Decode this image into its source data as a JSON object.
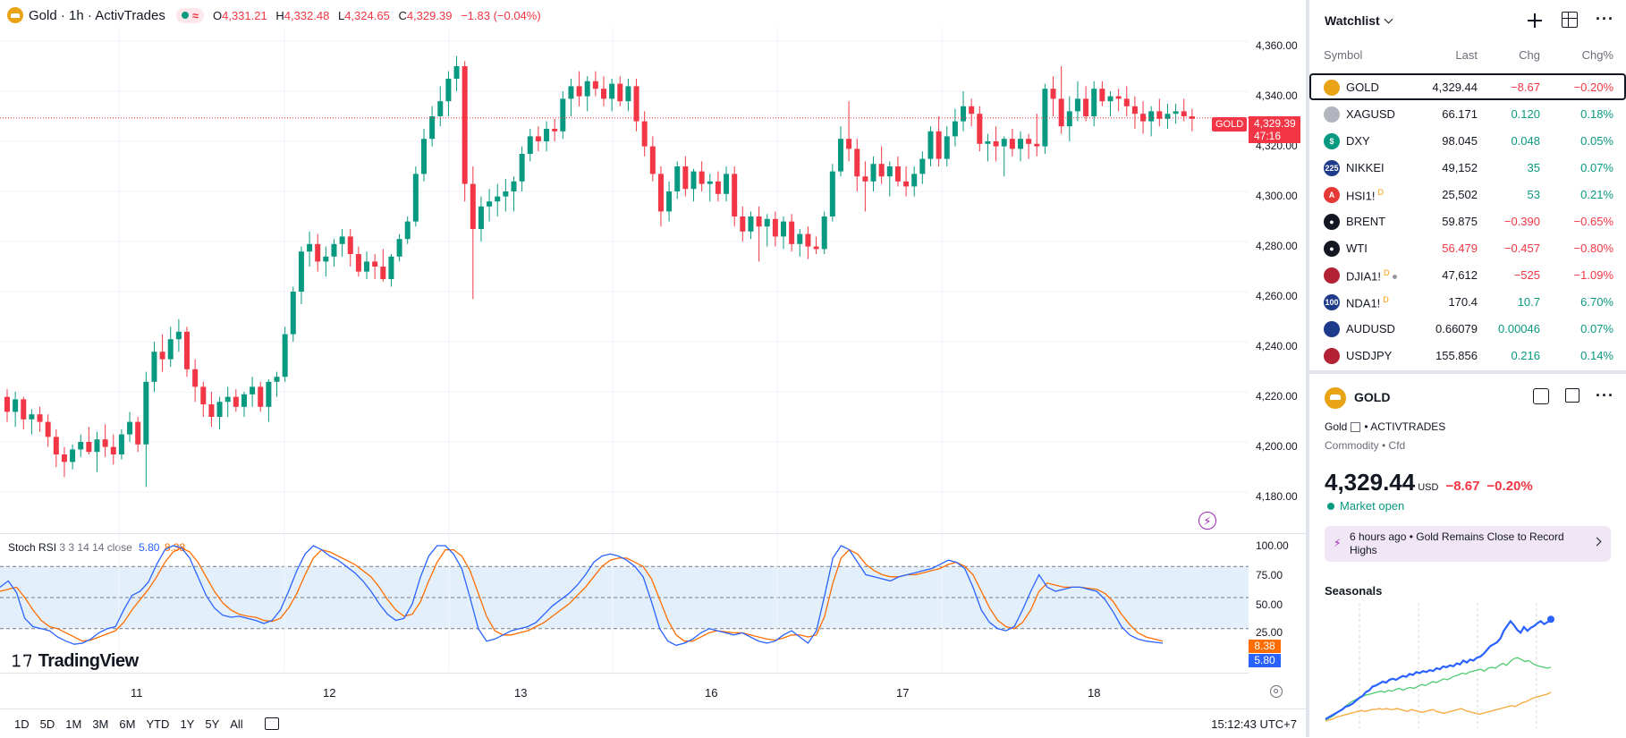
{
  "legend": {
    "title": "Gold · 1h · ActivTrades",
    "open_label": "O",
    "open": "4,331.21",
    "high_label": "H",
    "high": "4,332.48",
    "low_label": "L",
    "low": "4,324.65",
    "close_label": "C",
    "close": "4,329.39",
    "change": "−1.83 (−0.04%)"
  },
  "price_scale": {
    "ticks": [
      "4,360.00",
      "4,340.00",
      "4,320.00",
      "4,300.00",
      "4,280.00",
      "4,260.00",
      "4,240.00",
      "4,220.00",
      "4,200.00",
      "4,180.00"
    ],
    "current_price": "4,329.39",
    "countdown": "47:16",
    "symbol_tag": "GOLD"
  },
  "candles": [
    [
      4218,
      4221,
      4208,
      4212
    ],
    [
      4212,
      4220,
      4206,
      4217
    ],
    [
      4217,
      4218,
      4205,
      4209
    ],
    [
      4209,
      4213,
      4203,
      4211
    ],
    [
      4211,
      4214,
      4204,
      4208
    ],
    [
      4208,
      4211,
      4198,
      4202
    ],
    [
      4202,
      4205,
      4190,
      4195
    ],
    [
      4195,
      4198,
      4186,
      4192
    ],
    [
      4192,
      4199,
      4189,
      4197
    ],
    [
      4197,
      4203,
      4194,
      4200
    ],
    [
      4200,
      4206,
      4195,
      4196
    ],
    [
      4196,
      4204,
      4188,
      4201
    ],
    [
      4201,
      4207,
      4194,
      4198
    ],
    [
      4198,
      4203,
      4191,
      4195
    ],
    [
      4195,
      4205,
      4193,
      4203
    ],
    [
      4203,
      4212,
      4200,
      4208
    ],
    [
      4208,
      4210,
      4196,
      4199
    ],
    [
      4199,
      4228,
      4182,
      4224
    ],
    [
      4224,
      4240,
      4220,
      4236
    ],
    [
      4236,
      4243,
      4228,
      4233
    ],
    [
      4233,
      4246,
      4230,
      4241
    ],
    [
      4241,
      4249,
      4236,
      4244
    ],
    [
      4244,
      4246,
      4226,
      4229
    ],
    [
      4229,
      4233,
      4216,
      4222
    ],
    [
      4222,
      4224,
      4210,
      4215
    ],
    [
      4215,
      4220,
      4206,
      4210
    ],
    [
      4210,
      4218,
      4205,
      4216
    ],
    [
      4216,
      4222,
      4210,
      4218
    ],
    [
      4218,
      4221,
      4212,
      4214
    ],
    [
      4214,
      4220,
      4210,
      4219
    ],
    [
      4219,
      4226,
      4214,
      4222
    ],
    [
      4222,
      4224,
      4212,
      4214
    ],
    [
      4214,
      4225,
      4208,
      4224
    ],
    [
      4224,
      4228,
      4218,
      4226
    ],
    [
      4226,
      4246,
      4224,
      4243
    ],
    [
      4243,
      4262,
      4240,
      4260
    ],
    [
      4260,
      4278,
      4255,
      4276
    ],
    [
      4276,
      4284,
      4270,
      4279
    ],
    [
      4279,
      4283,
      4268,
      4272
    ],
    [
      4272,
      4278,
      4266,
      4274
    ],
    [
      4274,
      4281,
      4270,
      4279
    ],
    [
      4279,
      4285,
      4274,
      4282
    ],
    [
      4282,
      4285,
      4270,
      4275
    ],
    [
      4275,
      4278,
      4266,
      4268
    ],
    [
      4268,
      4276,
      4265,
      4272
    ],
    [
      4272,
      4275,
      4265,
      4270
    ],
    [
      4270,
      4277,
      4264,
      4265
    ],
    [
      4265,
      4275,
      4262,
      4274
    ],
    [
      4274,
      4283,
      4272,
      4281
    ],
    [
      4281,
      4290,
      4279,
      4288
    ],
    [
      4288,
      4310,
      4286,
      4307
    ],
    [
      4307,
      4325,
      4304,
      4321
    ],
    [
      4321,
      4334,
      4318,
      4330
    ],
    [
      4330,
      4342,
      4326,
      4336
    ],
    [
      4336,
      4348,
      4330,
      4345
    ],
    [
      4345,
      4354,
      4340,
      4350
    ],
    [
      4350,
      4352,
      4296,
      4303
    ],
    [
      4303,
      4310,
      4257,
      4285
    ],
    [
      4285,
      4298,
      4280,
      4294
    ],
    [
      4294,
      4301,
      4288,
      4296
    ],
    [
      4296,
      4303,
      4290,
      4298
    ],
    [
      4298,
      4305,
      4292,
      4300
    ],
    [
      4300,
      4306,
      4292,
      4304
    ],
    [
      4304,
      4318,
      4300,
      4315
    ],
    [
      4315,
      4325,
      4312,
      4322
    ],
    [
      4322,
      4326,
      4316,
      4320
    ],
    [
      4320,
      4328,
      4316,
      4325
    ],
    [
      4325,
      4329,
      4320,
      4324
    ],
    [
      4324,
      4340,
      4321,
      4337
    ],
    [
      4337,
      4345,
      4330,
      4342
    ],
    [
      4342,
      4348,
      4334,
      4338
    ],
    [
      4338,
      4346,
      4332,
      4344
    ],
    [
      4344,
      4348,
      4338,
      4341
    ],
    [
      4341,
      4346,
      4334,
      4337
    ],
    [
      4337,
      4345,
      4332,
      4343
    ],
    [
      4343,
      4346,
      4334,
      4336
    ],
    [
      4336,
      4345,
      4332,
      4342
    ],
    [
      4342,
      4345,
      4324,
      4328
    ],
    [
      4328,
      4332,
      4314,
      4318
    ],
    [
      4318,
      4322,
      4304,
      4307
    ],
    [
      4307,
      4310,
      4286,
      4292
    ],
    [
      4292,
      4304,
      4288,
      4300
    ],
    [
      4300,
      4312,
      4297,
      4310
    ],
    [
      4310,
      4314,
      4298,
      4301
    ],
    [
      4301,
      4309,
      4296,
      4308
    ],
    [
      4308,
      4312,
      4300,
      4303
    ],
    [
      4303,
      4307,
      4296,
      4304
    ],
    [
      4304,
      4308,
      4296,
      4299
    ],
    [
      4299,
      4310,
      4296,
      4307
    ],
    [
      4307,
      4310,
      4286,
      4290
    ],
    [
      4290,
      4294,
      4280,
      4284
    ],
    [
      4284,
      4292,
      4281,
      4290
    ],
    [
      4290,
      4294,
      4272,
      4286
    ],
    [
      4286,
      4291,
      4278,
      4289
    ],
    [
      4289,
      4292,
      4278,
      4282
    ],
    [
      4282,
      4290,
      4277,
      4288
    ],
    [
      4288,
      4291,
      4276,
      4279
    ],
    [
      4279,
      4285,
      4274,
      4283
    ],
    [
      4283,
      4286,
      4273,
      4278
    ],
    [
      4278,
      4282,
      4275,
      4277
    ],
    [
      4277,
      4292,
      4275,
      4290
    ],
    [
      4290,
      4311,
      4288,
      4308
    ],
    [
      4308,
      4326,
      4306,
      4321
    ],
    [
      4321,
      4336,
      4312,
      4317
    ],
    [
      4317,
      4321,
      4300,
      4306
    ],
    [
      4306,
      4312,
      4292,
      4304
    ],
    [
      4304,
      4314,
      4300,
      4311
    ],
    [
      4311,
      4318,
      4303,
      4306
    ],
    [
      4306,
      4312,
      4298,
      4310
    ],
    [
      4310,
      4314,
      4302,
      4304
    ],
    [
      4304,
      4310,
      4298,
      4302
    ],
    [
      4302,
      4310,
      4298,
      4307
    ],
    [
      4307,
      4316,
      4303,
      4313
    ],
    [
      4313,
      4326,
      4310,
      4324
    ],
    [
      4324,
      4330,
      4310,
      4313
    ],
    [
      4313,
      4326,
      4310,
      4322
    ],
    [
      4322,
      4333,
      4318,
      4328
    ],
    [
      4328,
      4340,
      4324,
      4334
    ],
    [
      4334,
      4337,
      4326,
      4331
    ],
    [
      4331,
      4334,
      4316,
      4319
    ],
    [
      4319,
      4323,
      4312,
      4320
    ],
    [
      4320,
      4326,
      4312,
      4318
    ],
    [
      4318,
      4322,
      4306,
      4321
    ],
    [
      4321,
      4325,
      4314,
      4317
    ],
    [
      4317,
      4324,
      4312,
      4321
    ],
    [
      4321,
      4323,
      4313,
      4319
    ],
    [
      4319,
      4331,
      4314,
      4318
    ],
    [
      4318,
      4343,
      4315,
      4341
    ],
    [
      4341,
      4346,
      4330,
      4337
    ],
    [
      4337,
      4350,
      4323,
      4326
    ],
    [
      4326,
      4338,
      4320,
      4332
    ],
    [
      4332,
      4344,
      4328,
      4337
    ],
    [
      4337,
      4342,
      4328,
      4330
    ],
    [
      4330,
      4344,
      4326,
      4341
    ],
    [
      4341,
      4344,
      4334,
      4336
    ],
    [
      4336,
      4340,
      4330,
      4338
    ],
    [
      4338,
      4341,
      4332,
      4337
    ],
    [
      4337,
      4342,
      4330,
      4334
    ],
    [
      4334,
      4338,
      4325,
      4331
    ],
    [
      4331,
      4336,
      4323,
      4328
    ],
    [
      4328,
      4334,
      4322,
      4332
    ],
    [
      4332,
      4337,
      4326,
      4329
    ],
    [
      4329,
      4335,
      4325,
      4331
    ],
    [
      4331,
      4335,
      4327,
      4332
    ],
    [
      4332,
      4337,
      4328,
      4330
    ],
    [
      4330,
      4333,
      4324,
      4329
    ]
  ],
  "stoch": {
    "title": "Stoch RSI",
    "params": "3 3 14 14 close",
    "k_value": "5.80",
    "d_value": "8.38",
    "ticks": [
      "100.00",
      "75.00",
      "50.00",
      "25.00"
    ],
    "k": [
      60,
      66,
      55,
      30,
      22,
      20,
      18,
      12,
      8,
      5,
      6,
      10,
      16,
      20,
      22,
      38,
      52,
      56,
      65,
      82,
      96,
      100,
      98,
      88,
      70,
      52,
      40,
      33,
      31,
      32,
      30,
      28,
      25,
      28,
      38,
      56,
      76,
      92,
      100,
      96,
      90,
      86,
      80,
      74,
      66,
      56,
      44,
      34,
      28,
      30,
      44,
      70,
      90,
      100,
      100,
      92,
      78,
      50,
      20,
      8,
      10,
      14,
      18,
      20,
      22,
      26,
      34,
      42,
      48,
      54,
      62,
      72,
      84,
      90,
      92,
      90,
      86,
      80,
      70,
      46,
      20,
      8,
      4,
      6,
      10,
      16,
      20,
      18,
      16,
      14,
      16,
      12,
      8,
      6,
      8,
      14,
      18,
      12,
      6,
      18,
      52,
      88,
      100,
      96,
      84,
      72,
      70,
      68,
      66,
      70,
      72,
      74,
      76,
      78,
      82,
      86,
      84,
      78,
      60,
      38,
      26,
      20,
      18,
      22,
      38,
      56,
      72,
      60,
      56,
      58,
      60,
      60,
      58,
      56,
      48,
      36,
      22,
      14,
      10,
      8,
      7,
      6
    ],
    "d": [
      56,
      58,
      60,
      50,
      38,
      28,
      22,
      20,
      16,
      12,
      8,
      9,
      12,
      15,
      18,
      26,
      38,
      48,
      58,
      70,
      84,
      94,
      98,
      94,
      84,
      70,
      56,
      45,
      38,
      34,
      32,
      31,
      28,
      27,
      30,
      40,
      54,
      72,
      88,
      96,
      94,
      90,
      86,
      82,
      76,
      70,
      60,
      48,
      38,
      32,
      34,
      46,
      66,
      84,
      96,
      96,
      90,
      76,
      54,
      32,
      18,
      14,
      14,
      16,
      18,
      22,
      26,
      32,
      38,
      44,
      52,
      60,
      70,
      80,
      86,
      88,
      88,
      84,
      80,
      68,
      48,
      28,
      14,
      8,
      8,
      12,
      16,
      18,
      17,
      16,
      16,
      14,
      12,
      10,
      9,
      11,
      14,
      14,
      12,
      14,
      32,
      64,
      88,
      96,
      92,
      82,
      76,
      72,
      70,
      70,
      72,
      72,
      74,
      76,
      78,
      82,
      84,
      80,
      72,
      56,
      40,
      28,
      22,
      20,
      26,
      38,
      56,
      64,
      62,
      60,
      60,
      60,
      59,
      58,
      54,
      46,
      34,
      24,
      16,
      12,
      10,
      8
    ]
  },
  "time_axis": {
    "labels": [
      "11",
      "12",
      "13",
      "16",
      "17",
      "18"
    ]
  },
  "ranges": [
    "1D",
    "5D",
    "1M",
    "3M",
    "6M",
    "YTD",
    "1Y",
    "5Y",
    "All"
  ],
  "clock": "15:12:43 UTC+7",
  "brand": "TradingView",
  "watchlist": {
    "title": "Watchlist",
    "cols": {
      "symbol": "Symbol",
      "last": "Last",
      "chg": "Chg",
      "pct": "Chg%"
    },
    "rows": [
      {
        "symbol": "GOLD",
        "last": "4,329.44",
        "chg": "−8.67",
        "pct": "−0.20%",
        "icon": "gold-icon",
        "color": "#e8a317",
        "glyph": "",
        "sup": "",
        "dir": "neg",
        "last_color": "",
        "selected": true
      },
      {
        "symbol": "XAGUSD",
        "last": "66.171",
        "chg": "0.120",
        "pct": "0.18%",
        "icon": "silver-icon",
        "color": "#b2b5be",
        "glyph": "",
        "sup": "",
        "dir": "pos",
        "last_color": ""
      },
      {
        "symbol": "DXY",
        "last": "98.045",
        "chg": "0.048",
        "pct": "0.05%",
        "icon": "dollar-icon",
        "color": "#089981",
        "glyph": "$",
        "sup": "",
        "dir": "pos",
        "last_color": ""
      },
      {
        "symbol": "NIKKEI",
        "last": "49,152",
        "chg": "35",
        "pct": "0.07%",
        "icon": "nikkei-icon",
        "color": "#1e3a8a",
        "glyph": "225",
        "sup": "",
        "dir": "pos",
        "last_color": ""
      },
      {
        "symbol": "HSI1!",
        "last": "25,502",
        "chg": "53",
        "pct": "0.21%",
        "icon": "hsi-icon",
        "color": "#e53935",
        "glyph": "A",
        "sup": "D",
        "dir": "pos",
        "last_color": ""
      },
      {
        "symbol": "BRENT",
        "last": "59.875",
        "chg": "−0.390",
        "pct": "−0.65%",
        "icon": "oil-drop-icon",
        "color": "#131722",
        "glyph": "●",
        "sup": "",
        "dir": "neg",
        "last_color": ""
      },
      {
        "symbol": "WTI",
        "last": "56.479",
        "chg": "−0.457",
        "pct": "−0.80%",
        "icon": "oil-drop-icon",
        "color": "#131722",
        "glyph": "●",
        "sup": "",
        "dir": "neg",
        "last_color": "#f23645"
      },
      {
        "symbol": "DJIA1!",
        "last": "47,612",
        "chg": "−525",
        "pct": "−1.09%",
        "icon": "us-flag-icon",
        "color": "#b22234",
        "glyph": "",
        "sup": "D",
        "dir": "neg",
        "last_color": "",
        "dot": true
      },
      {
        "symbol": "NDA1!",
        "last": "170.4",
        "chg": "10.7",
        "pct": "6.70%",
        "icon": "nasdaq-100-icon",
        "color": "#1e3a8a",
        "glyph": "100",
        "sup": "D",
        "dir": "pos",
        "last_color": ""
      },
      {
        "symbol": "AUDUSD",
        "last": "0.66079",
        "chg": "0.00046",
        "pct": "0.07%",
        "icon": "aud-flag-icon",
        "color": "#1e3a8a",
        "glyph": "",
        "sup": "",
        "dir": "pos",
        "last_color": ""
      },
      {
        "symbol": "USDJPY",
        "last": "155.856",
        "chg": "0.216",
        "pct": "0.14%",
        "icon": "us-flag-icon",
        "color": "#b22234",
        "glyph": "",
        "sup": "",
        "dir": "pos",
        "last_color": ""
      }
    ]
  },
  "details": {
    "symbol": "GOLD",
    "name": "Gold",
    "exchange": "• ACTIVTRADES",
    "category": "Commodity • Cfd",
    "price": "4,329.44",
    "currency": "USD",
    "change": "−8.67",
    "change_pct": "−0.20%",
    "market_status": "Market open",
    "news": "6 hours ago • Gold Remains Close to Record Highs",
    "seasonals_title": "Seasonals"
  },
  "colors": {
    "up": "#089981",
    "down": "#f23645",
    "k_line": "#2962ff",
    "d_line": "#ff6d00"
  },
  "seasonals": {
    "blue": [
      2,
      4,
      6,
      8,
      10,
      12,
      15,
      16,
      18,
      21,
      24,
      26,
      30,
      32,
      36,
      37,
      39,
      41,
      40,
      43,
      44,
      43,
      45,
      47,
      46,
      49,
      48,
      51,
      50,
      52,
      51,
      53,
      52,
      55,
      54,
      57,
      56,
      58,
      57,
      60,
      59,
      63,
      61,
      64,
      63,
      66,
      67,
      70,
      74,
      78,
      80,
      82,
      86,
      94,
      99,
      104,
      100,
      95,
      92,
      98,
      94,
      97,
      99,
      102,
      104,
      101,
      103,
      106
    ],
    "green": [
      1,
      3,
      5,
      8,
      11,
      14,
      17,
      20,
      22,
      24,
      26,
      27,
      28,
      29,
      30,
      31,
      30,
      32,
      31,
      33,
      34,
      32,
      34,
      35,
      34,
      36,
      38,
      37,
      39,
      41,
      40,
      42,
      44,
      43,
      45,
      47,
      48,
      50,
      49,
      51,
      52,
      53,
      54,
      52,
      55,
      56,
      55,
      58,
      60,
      58,
      62,
      65,
      66,
      64,
      62,
      63,
      60,
      58,
      57,
      56,
      55,
      56
    ],
    "orange": [
      0,
      1,
      2,
      4,
      5,
      6,
      7,
      8,
      9,
      10,
      11,
      10,
      11,
      12,
      12,
      13,
      12,
      13,
      12,
      12,
      13,
      12,
      11,
      10,
      12,
      11,
      10,
      9,
      10,
      11,
      12,
      10,
      9,
      8,
      9,
      10,
      11,
      12,
      13,
      11,
      10,
      9,
      8,
      7,
      8,
      9,
      10,
      11,
      12,
      13,
      14,
      15,
      16,
      15,
      17,
      19,
      20,
      22,
      24,
      25,
      26,
      27,
      28,
      30
    ]
  }
}
